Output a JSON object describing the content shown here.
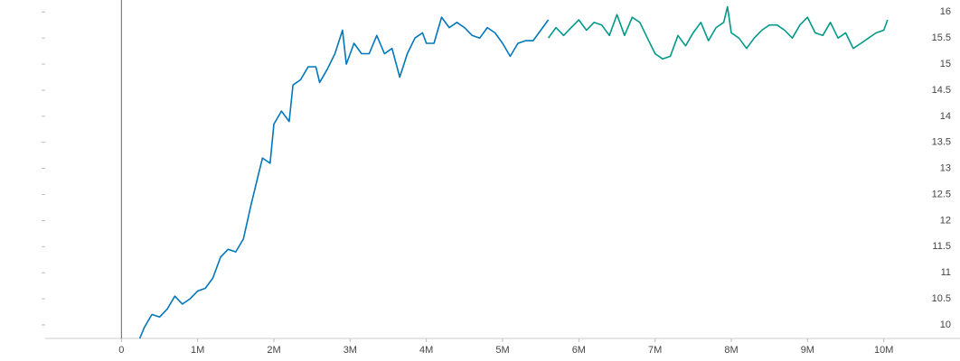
{
  "chart_data": {
    "type": "line",
    "xlim": [
      -1000000,
      11000000
    ],
    "ylim": [
      9.74,
      16.23
    ],
    "xticks": [
      {
        "value": 0,
        "label": "0"
      },
      {
        "value": 1000000,
        "label": "1M"
      },
      {
        "value": 2000000,
        "label": "2M"
      },
      {
        "value": 3000000,
        "label": "3M"
      },
      {
        "value": 4000000,
        "label": "4M"
      },
      {
        "value": 5000000,
        "label": "5M"
      },
      {
        "value": 6000000,
        "label": "6M"
      },
      {
        "value": 7000000,
        "label": "7M"
      },
      {
        "value": 8000000,
        "label": "8M"
      },
      {
        "value": 9000000,
        "label": "9M"
      },
      {
        "value": 10000000,
        "label": "10M"
      }
    ],
    "yticks": [
      10,
      10.5,
      11,
      11.5,
      12,
      12.5,
      13,
      13.5,
      14,
      14.5,
      15,
      15.5,
      16
    ],
    "series": [
      {
        "color": "#0077bb",
        "x": [
          240000,
          300000,
          400000,
          500000,
          600000,
          700000,
          800000,
          900000,
          1000000,
          1100000,
          1200000,
          1300000,
          1400000,
          1500000,
          1600000,
          1700000,
          1800000,
          1850000,
          1950000,
          2000000,
          2100000,
          2200000,
          2250000,
          2350000,
          2450000,
          2550000,
          2600000,
          2700000,
          2800000,
          2900000,
          2950000,
          3050000,
          3150000,
          3250000,
          3350000,
          3450000,
          3550000,
          3650000,
          3750000,
          3850000,
          3950000,
          4000000,
          4100000,
          4200000,
          4300000,
          4400000,
          4500000,
          4600000,
          4700000,
          4800000,
          4900000,
          5000000,
          5100000,
          5200000,
          5300000,
          5400000,
          5500000,
          5600000
        ],
        "values": [
          9.74,
          9.95,
          10.2,
          10.15,
          10.3,
          10.55,
          10.4,
          10.5,
          10.65,
          10.7,
          10.9,
          11.3,
          11.45,
          11.4,
          11.65,
          12.3,
          12.9,
          13.2,
          13.1,
          13.85,
          14.1,
          13.9,
          14.6,
          14.7,
          14.95,
          14.95,
          14.65,
          14.9,
          15.2,
          15.65,
          15.0,
          15.4,
          15.2,
          15.2,
          15.55,
          15.2,
          15.3,
          14.75,
          15.2,
          15.5,
          15.6,
          15.4,
          15.4,
          15.9,
          15.7,
          15.8,
          15.7,
          15.55,
          15.5,
          15.7,
          15.6,
          15.4,
          15.15,
          15.4,
          15.45,
          15.45,
          15.65,
          15.85
        ]
      },
      {
        "color": "#009988",
        "x": [
          5600000,
          5700000,
          5800000,
          5900000,
          6000000,
          6100000,
          6200000,
          6300000,
          6400000,
          6500000,
          6600000,
          6700000,
          6800000,
          6900000,
          7000000,
          7100000,
          7200000,
          7300000,
          7400000,
          7500000,
          7600000,
          7700000,
          7800000,
          7900000,
          7950000,
          8000000,
          8100000,
          8200000,
          8300000,
          8400000,
          8500000,
          8600000,
          8700000,
          8800000,
          8900000,
          9000000,
          9100000,
          9200000,
          9300000,
          9400000,
          9500000,
          9600000,
          9700000,
          9800000,
          9900000,
          10000000,
          10050000
        ],
        "values": [
          15.5,
          15.7,
          15.55,
          15.7,
          15.85,
          15.65,
          15.8,
          15.75,
          15.55,
          15.95,
          15.55,
          15.9,
          15.8,
          15.5,
          15.2,
          15.1,
          15.15,
          15.55,
          15.35,
          15.6,
          15.8,
          15.45,
          15.7,
          15.8,
          16.1,
          15.6,
          15.5,
          15.3,
          15.5,
          15.65,
          15.75,
          15.75,
          15.65,
          15.5,
          15.75,
          15.9,
          15.6,
          15.55,
          15.8,
          15.5,
          15.6,
          15.3,
          15.4,
          15.5,
          15.6,
          15.65,
          15.85
        ]
      }
    ]
  }
}
